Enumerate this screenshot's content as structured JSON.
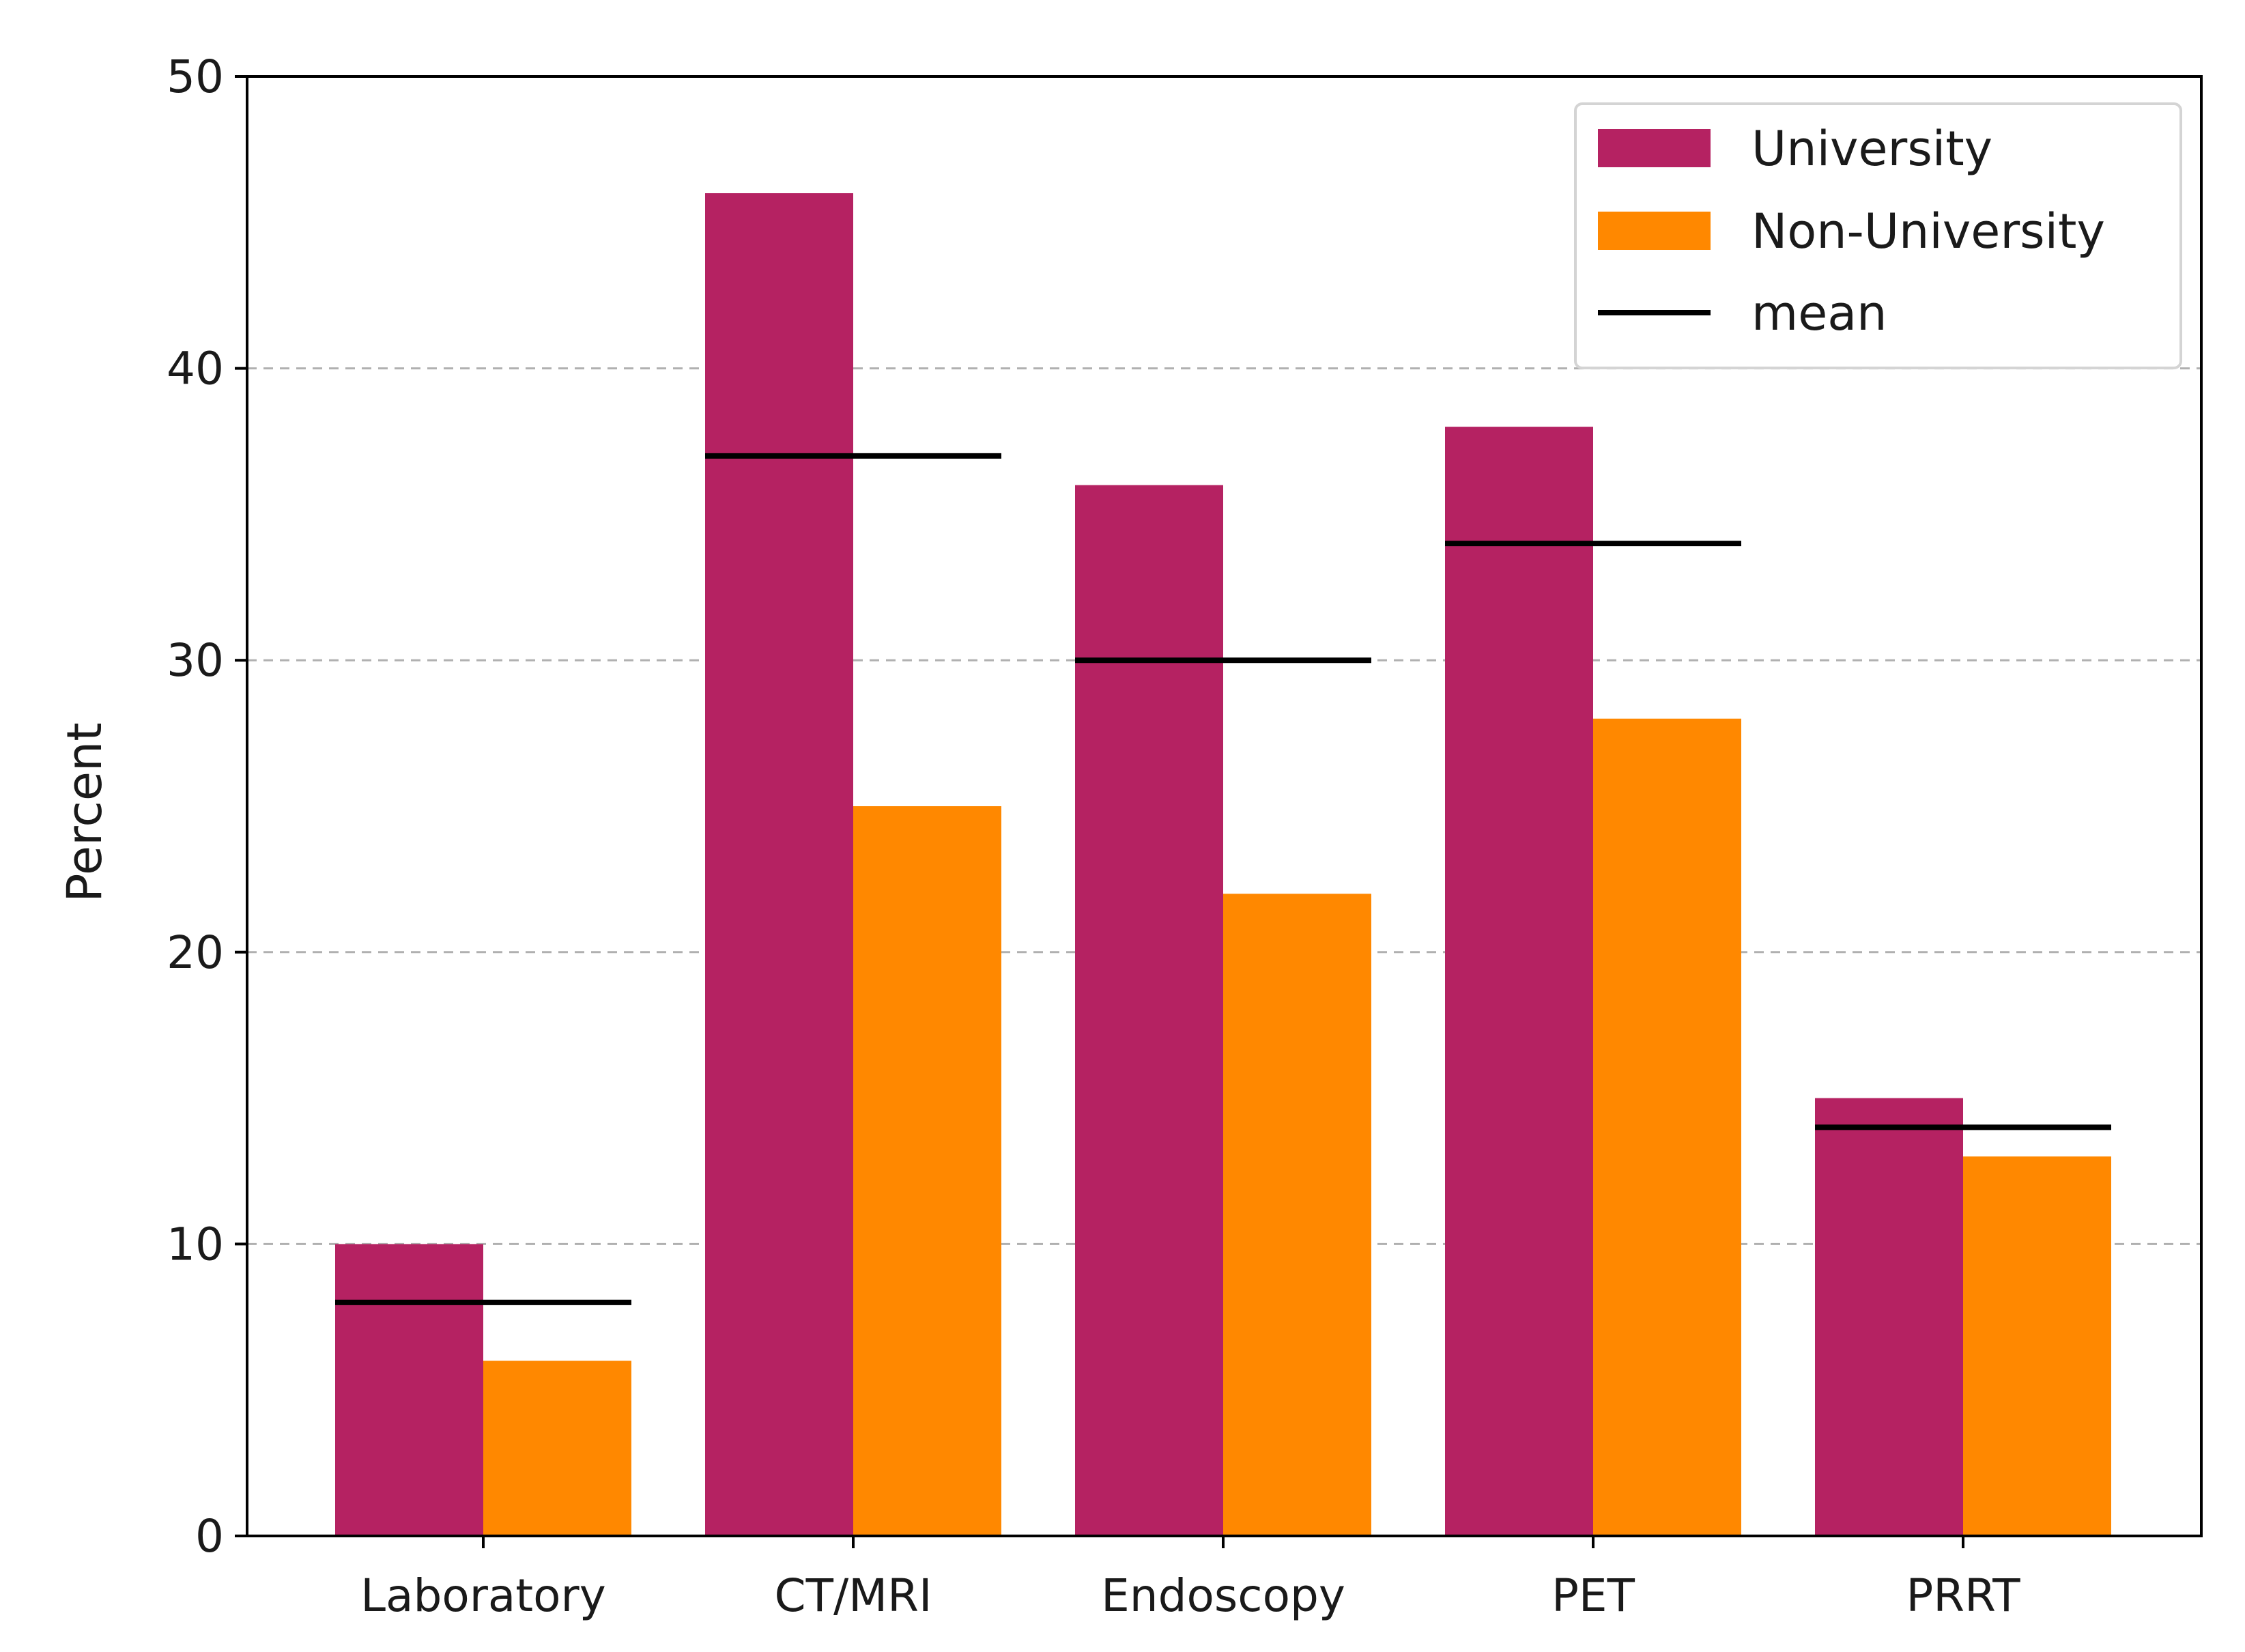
{
  "chart_data": {
    "type": "bar",
    "title": "",
    "xlabel": "",
    "ylabel": "Percent",
    "ylim": [
      0,
      50
    ],
    "yticks": [
      0,
      10,
      20,
      30,
      40,
      50
    ],
    "ytick_labels": [
      "0",
      "10",
      "20",
      "30",
      "40",
      "50"
    ],
    "grid": "horizontal dashed",
    "categories": [
      "Laboratory",
      "CT/MRI",
      "Endoscopy",
      "PET",
      "PRRT"
    ],
    "series": [
      {
        "name": "University",
        "color": "#b52262",
        "values": [
          10,
          46,
          36,
          38,
          15
        ]
      },
      {
        "name": "Non-University",
        "color": "#ff8800",
        "values": [
          6,
          25,
          22,
          28,
          13
        ]
      }
    ],
    "mean": {
      "name": "mean",
      "color": "#000000",
      "values": [
        8,
        37,
        30,
        34,
        14
      ]
    },
    "legend": {
      "placement": "top-right",
      "entries": [
        "University",
        "Non-University",
        "mean"
      ]
    }
  }
}
